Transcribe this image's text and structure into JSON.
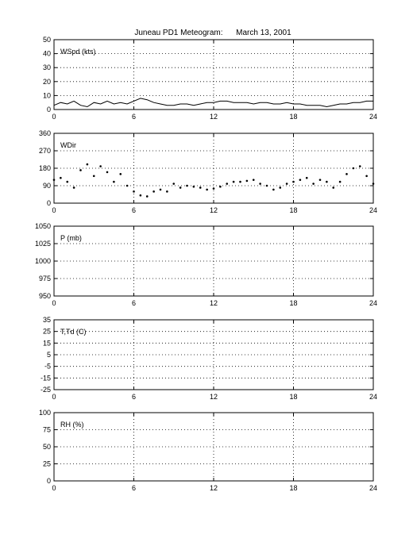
{
  "figure": {
    "title": "Juneau PD1 Meteogram:      March 13, 2001"
  },
  "chart_data": [
    {
      "type": "line",
      "label": "WSpd (kts)",
      "xlim": [
        0,
        24
      ],
      "xticks": [
        0,
        6,
        12,
        18,
        24
      ],
      "ylim": [
        0,
        50
      ],
      "yticks": [
        0,
        10,
        20,
        30,
        40,
        50
      ],
      "grid": true,
      "series": [
        {
          "x": [
            0,
            0.5,
            1,
            1.5,
            2,
            2.5,
            3,
            3.5,
            4,
            4.5,
            5,
            5.5,
            6,
            6.5,
            7,
            7.5,
            8,
            8.5,
            9,
            9.5,
            10,
            10.5,
            11,
            11.5,
            12,
            12.5,
            13,
            13.5,
            14,
            14.5,
            15,
            15.5,
            16,
            16.5,
            17,
            17.5,
            18,
            18.5,
            19,
            19.5,
            20,
            20.5,
            21,
            21.5,
            22,
            22.5,
            23,
            23.5,
            24
          ],
          "values": [
            3,
            5,
            4,
            6,
            3,
            2,
            5,
            4,
            6,
            4,
            5,
            4,
            6,
            8,
            7,
            5,
            4,
            3,
            3,
            4,
            4,
            3,
            4,
            5,
            5,
            6,
            6,
            5,
            5,
            5,
            4,
            5,
            5,
            4,
            4,
            5,
            4,
            4,
            3,
            3,
            3,
            2,
            3,
            4,
            4,
            5,
            5,
            6,
            6
          ]
        }
      ]
    },
    {
      "type": "scatter",
      "label": "WDir",
      "xlim": [
        0,
        24
      ],
      "xticks": [
        0,
        6,
        12,
        18,
        24
      ],
      "ylim": [
        0,
        360
      ],
      "yticks": [
        0,
        90,
        180,
        270,
        360
      ],
      "grid": true,
      "series": [
        {
          "x": [
            0,
            0.5,
            1,
            1.5,
            2,
            2.5,
            3,
            3.5,
            4,
            4.5,
            5,
            5.5,
            6,
            6.5,
            7,
            7.5,
            8,
            8.5,
            9,
            9.5,
            10,
            10.5,
            11,
            11.5,
            12,
            12.5,
            13,
            13.5,
            14,
            14.5,
            15,
            15.5,
            16,
            16.5,
            17,
            17.5,
            18,
            18.5,
            19,
            19.5,
            20,
            20.5,
            21,
            21.5,
            22,
            22.5,
            23,
            23.5,
            24
          ],
          "values": [
            120,
            130,
            110,
            80,
            170,
            200,
            140,
            190,
            160,
            110,
            150,
            90,
            60,
            40,
            35,
            60,
            70,
            60,
            100,
            80,
            90,
            85,
            80,
            70,
            75,
            85,
            100,
            110,
            110,
            115,
            120,
            100,
            90,
            70,
            80,
            100,
            110,
            120,
            130,
            100,
            120,
            110,
            80,
            110,
            150,
            180,
            190,
            140,
            100
          ]
        }
      ]
    },
    {
      "type": "line",
      "label": "P (mb)",
      "xlim": [
        0,
        24
      ],
      "xticks": [
        0,
        6,
        12,
        18,
        24
      ],
      "ylim": [
        950,
        1050
      ],
      "yticks": [
        950,
        975,
        1000,
        1025,
        1050
      ],
      "grid": true,
      "series": []
    },
    {
      "type": "line",
      "label": "T,Td (C)",
      "xlim": [
        0,
        24
      ],
      "xticks": [
        0,
        6,
        12,
        18,
        24
      ],
      "ylim": [
        -25,
        35
      ],
      "yticks": [
        -25,
        -15,
        -5,
        5,
        15,
        25,
        35
      ],
      "grid": true,
      "series": []
    },
    {
      "type": "line",
      "label": "RH (%)",
      "xlim": [
        0,
        24
      ],
      "xticks": [
        0,
        6,
        12,
        18,
        24
      ],
      "ylim": [
        0,
        100
      ],
      "yticks": [
        0,
        25,
        50,
        75,
        100
      ],
      "grid": true,
      "series": []
    }
  ]
}
